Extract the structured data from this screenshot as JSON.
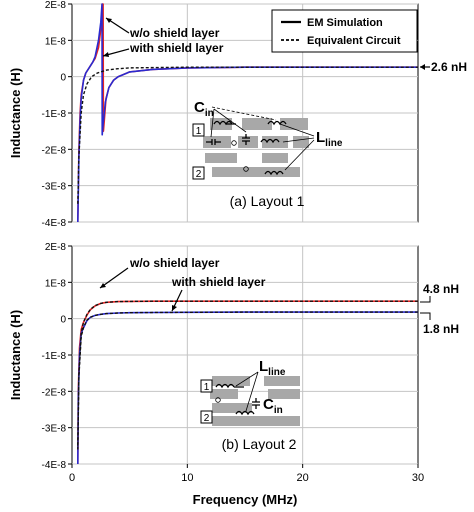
{
  "chart_data": [
    {
      "type": "line",
      "xlabel": "",
      "ylabel": "Inductance (H)",
      "xlim": [
        0,
        30
      ],
      "ylim": [
        -4e-08,
        2e-08
      ],
      "yticks": [
        "2E-8",
        "1E-8",
        "0",
        "-1E-8",
        "-2E-8",
        "-3E-8",
        "-4E-8"
      ],
      "ytick_values": [
        2e-08,
        1e-08,
        0,
        -1e-08,
        -2e-08,
        -3e-08,
        -4e-08
      ],
      "grid": true,
      "legend": [
        "EM Simulation",
        "Equivalent Circuit"
      ],
      "legend_position": "top-right",
      "annotations": [
        "w/o shield layer",
        "with shield layer",
        "2.6 nH",
        "(a) Layout 1"
      ],
      "diagram_labels": {
        "c_main": "C",
        "c_sub": "in",
        "l_main": "L",
        "l_sub": "line",
        "port1": "1",
        "port2": "2"
      },
      "series": [
        {
          "name": "w/o shield layer",
          "style": "EM Simulation",
          "color": "#e32424",
          "x": [
            0.5,
            0.6,
            0.7,
            0.8,
            1.0,
            1.2,
            1.5,
            1.8,
            2.0,
            2.3,
            2.5,
            2.65,
            2.7,
            2.72,
            2.8,
            2.95,
            3.2,
            3.6,
            4.0,
            5.0,
            7.0,
            10,
            15,
            20,
            25,
            30
          ],
          "y": [
            -4e-08,
            -2e-08,
            -1e-08,
            -5e-09,
            -1e-09,
            1e-09,
            2.5e-09,
            4e-09,
            5e-09,
            8e-09,
            1.3e-08,
            2e-08,
            2e-08,
            -1.5e-08,
            -1.2e-08,
            -6e-09,
            -3e-09,
            -1e-09,
            0,
            1.3e-09,
            2e-09,
            2.4e-09,
            2.6e-09,
            2.6e-09,
            2.6e-09,
            2.6e-09
          ]
        },
        {
          "name": "with shield layer",
          "style": "EM Simulation",
          "color": "#2a2ad0",
          "x": [
            0.5,
            0.6,
            0.7,
            0.8,
            1.0,
            1.2,
            1.5,
            1.8,
            2.0,
            2.3,
            2.5,
            2.6,
            2.62,
            2.7,
            2.9,
            3.2,
            3.6,
            4.0,
            5.0,
            7.0,
            10,
            15,
            20,
            25,
            30
          ],
          "y": [
            -4e-08,
            -2.2e-08,
            -1.2e-08,
            -6e-09,
            -1e-09,
            1e-09,
            2.5e-09,
            4e-09,
            5.5e-09,
            1e-08,
            1.5e-08,
            2e-08,
            -1.6e-08,
            -1.3e-08,
            -7e-09,
            -3e-09,
            -1e-09,
            0,
            1.3e-09,
            2e-09,
            2.4e-09,
            2.6e-09,
            2.6e-09,
            2.6e-09,
            2.6e-09
          ]
        },
        {
          "name": "Equivalent Circuit",
          "style": "Equivalent Circuit",
          "color": "#111111",
          "dashed": true,
          "x": [
            0.5,
            0.6,
            0.8,
            1.0,
            1.3,
            1.7,
            2.2,
            3.0,
            4.0,
            5.0,
            7.0,
            10,
            15,
            20,
            30
          ],
          "y": [
            -3.5e-08,
            -2.2e-08,
            -1e-08,
            -5e-09,
            -2e-09,
            0,
            1e-09,
            1.8e-09,
            2.2e-09,
            2.4e-09,
            2.5e-09,
            2.6e-09,
            2.6e-09,
            2.6e-09,
            2.6e-09
          ]
        }
      ]
    },
    {
      "type": "line",
      "xlabel": "Frequency (MHz)",
      "ylabel": "Inductance (H)",
      "xlim": [
        0,
        30
      ],
      "ylim": [
        -4e-08,
        2e-08
      ],
      "xticks": [
        "0",
        "10",
        "20",
        "30"
      ],
      "xtick_values": [
        0,
        10,
        20,
        30
      ],
      "yticks": [
        "2E-8",
        "1E-8",
        "0",
        "-1E-8",
        "-2E-8",
        "-3E-8",
        "-4E-8"
      ],
      "ytick_values": [
        2e-08,
        1e-08,
        0,
        -1e-08,
        -2e-08,
        -3e-08,
        -4e-08
      ],
      "grid": true,
      "annotations": [
        "w/o shield layer",
        "with shield layer",
        "4.8 nH",
        "1.8 nH",
        "(b) Layout 2"
      ],
      "diagram_labels": {
        "c_main": "C",
        "c_sub": "in",
        "l_main": "L",
        "l_sub": "line",
        "port1": "1",
        "port2": "2"
      },
      "series": [
        {
          "name": "w/o shield layer",
          "style": "EM Simulation",
          "color": "#e32424",
          "x": [
            0.5,
            0.55,
            0.65,
            0.8,
            1.0,
            1.3,
            1.6,
            2.0,
            2.5,
            3.0,
            4.0,
            5.0,
            7.0,
            10,
            15,
            20,
            25,
            30
          ],
          "y": [
            -4e-08,
            -2e-08,
            -8e-09,
            -3e-09,
            -1e-09,
            1e-09,
            2.5e-09,
            3.5e-09,
            4.2e-09,
            4.5e-09,
            4.7e-09,
            4.75e-09,
            4.8e-09,
            4.8e-09,
            4.8e-09,
            4.8e-09,
            4.8e-09,
            4.8e-09
          ]
        },
        {
          "name": "with shield layer",
          "style": "EM Simulation",
          "color": "#2a2ad0",
          "x": [
            0.5,
            0.55,
            0.65,
            0.8,
            1.0,
            1.3,
            1.6,
            2.0,
            2.5,
            3.0,
            4.0,
            5.0,
            7.0,
            10,
            15,
            20,
            25,
            30
          ],
          "y": [
            -4e-08,
            -2.2e-08,
            -1e-08,
            -4e-09,
            -2.5e-09,
            -5e-10,
            4e-10,
            9e-10,
            1.2e-09,
            1.4e-09,
            1.55e-09,
            1.65e-09,
            1.7e-09,
            1.75e-09,
            1.8e-09,
            1.8e-09,
            1.8e-09,
            1.8e-09
          ]
        },
        {
          "name": "Equivalent Circuit (w/o shield)",
          "style": "Equivalent Circuit",
          "color": "#111111",
          "dashed": true,
          "x": [
            0.5,
            0.6,
            0.8,
            1.0,
            1.3,
            1.6,
            2.0,
            2.5,
            3.0,
            4.0,
            5.0,
            7.0,
            10,
            15,
            20,
            30
          ],
          "y": [
            -3.5e-08,
            -1.5e-08,
            -4e-09,
            -1e-09,
            1.2e-09,
            2.6e-09,
            3.6e-09,
            4.2e-09,
            4.5e-09,
            4.7e-09,
            4.75e-09,
            4.8e-09,
            4.8e-09,
            4.8e-09,
            4.8e-09,
            4.8e-09
          ]
        },
        {
          "name": "Equivalent Circuit (with shield)",
          "style": "Equivalent Circuit",
          "color": "#111111",
          "dashed": true,
          "x": [
            0.5,
            0.6,
            0.8,
            1.0,
            1.3,
            1.6,
            2.0,
            2.5,
            3.0,
            4.0,
            5.0,
            7.0,
            10,
            15,
            20,
            30
          ],
          "y": [
            -3.6e-08,
            -1.6e-08,
            -5e-09,
            -2.4e-09,
            -4e-10,
            4e-10,
            9e-10,
            1.2e-09,
            1.4e-09,
            1.55e-09,
            1.65e-09,
            1.7e-09,
            1.75e-09,
            1.8e-09,
            1.8e-09,
            1.8e-09
          ]
        }
      ]
    }
  ]
}
